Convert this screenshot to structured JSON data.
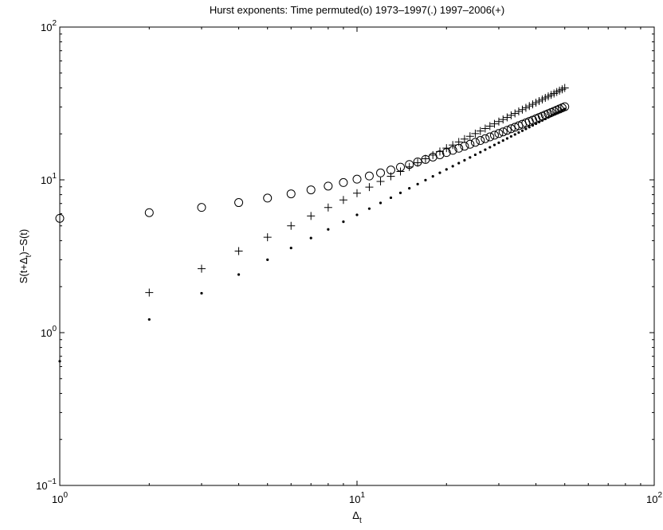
{
  "chart_data": {
    "type": "scatter",
    "title": "Hurst exponents:  Time permuted(o)  1973–1997(.)  1997–2006(+)",
    "xlabel": "Δt",
    "ylabel": "S(t+Δt)−S(t)",
    "xscale": "log",
    "yscale": "log",
    "xlim": [
      1,
      100
    ],
    "ylim": [
      0.1,
      100
    ],
    "xticks": [
      {
        "value": 1,
        "base": "10",
        "exp": "0"
      },
      {
        "value": 10,
        "base": "10",
        "exp": "1"
      },
      {
        "value": 100,
        "base": "10",
        "exp": "2"
      }
    ],
    "yticks": [
      {
        "value": 0.1,
        "base": "10",
        "exp": "−1"
      },
      {
        "value": 1,
        "base": "10",
        "exp": "0"
      },
      {
        "value": 10,
        "base": "10",
        "exp": "1"
      },
      {
        "value": 100,
        "base": "10",
        "exp": "2"
      }
    ],
    "grid": false,
    "series": [
      {
        "label": "Time permuted",
        "marker": "o",
        "x": [
          1,
          2,
          3,
          4,
          5,
          6,
          7,
          8,
          9,
          10,
          11,
          12,
          13,
          14,
          15,
          16,
          17,
          18,
          19,
          20,
          21,
          22,
          23,
          24,
          25,
          26,
          27,
          28,
          29,
          30,
          31,
          32,
          33,
          34,
          35,
          36,
          37,
          38,
          39,
          40,
          41,
          42,
          43,
          44,
          45,
          46,
          47,
          48,
          49,
          50
        ],
        "y": [
          5.6,
          6.1,
          6.6,
          7.1,
          7.6,
          8.1,
          8.6,
          9.1,
          9.6,
          10.1,
          10.6,
          11.1,
          11.6,
          12.1,
          12.6,
          13.1,
          13.6,
          14.1,
          14.6,
          15.1,
          15.6,
          16.1,
          16.6,
          17.1,
          17.6,
          18.1,
          18.6,
          19.1,
          19.6,
          20.1,
          20.6,
          21.1,
          21.6,
          22.1,
          22.6,
          23.1,
          23.6,
          24.1,
          24.6,
          25.1,
          25.6,
          26.1,
          26.6,
          27.1,
          27.6,
          28.1,
          28.6,
          29.1,
          29.6,
          30.1
        ]
      },
      {
        "label": "1973–1997",
        "marker": ".",
        "x": [
          1,
          2,
          3,
          4,
          5,
          6,
          7,
          8,
          9,
          10,
          11,
          12,
          13,
          14,
          15,
          16,
          17,
          18,
          19,
          20,
          21,
          22,
          23,
          24,
          25,
          26,
          27,
          28,
          29,
          30,
          31,
          32,
          33,
          34,
          35,
          36,
          37,
          38,
          39,
          40,
          41,
          42,
          43,
          44,
          45,
          46,
          47,
          48,
          49,
          50
        ],
        "y": [
          0.65,
          1.22,
          1.81,
          2.4,
          3.0,
          3.58,
          4.16,
          4.74,
          5.32,
          5.9,
          6.48,
          7.06,
          7.64,
          8.22,
          8.8,
          9.38,
          9.96,
          10.54,
          11.12,
          11.7,
          12.28,
          12.86,
          13.44,
          14.02,
          14.6,
          15.18,
          15.76,
          16.34,
          16.92,
          17.5,
          18.08,
          18.66,
          19.24,
          19.82,
          20.4,
          20.98,
          21.56,
          22.14,
          22.72,
          23.3,
          23.88,
          24.46,
          25.04,
          25.62,
          26.2,
          26.78,
          27.36,
          27.94,
          28.52,
          29.1
        ]
      },
      {
        "label": "1997–2006",
        "marker": "+",
        "x": [
          2,
          3,
          4,
          5,
          6,
          7,
          8,
          9,
          10,
          11,
          12,
          13,
          14,
          15,
          16,
          17,
          18,
          19,
          20,
          21,
          22,
          23,
          24,
          25,
          26,
          27,
          28,
          29,
          30,
          31,
          32,
          33,
          34,
          35,
          36,
          37,
          38,
          39,
          40,
          41,
          42,
          43,
          44,
          45,
          46,
          47,
          48,
          49,
          50
        ],
        "y": [
          1.83,
          2.62,
          3.42,
          4.21,
          5.0,
          5.8,
          6.59,
          7.39,
          8.18,
          8.97,
          9.77,
          10.56,
          11.35,
          12.15,
          12.94,
          13.74,
          14.53,
          15.32,
          16.12,
          16.91,
          17.71,
          18.5,
          19.29,
          20.09,
          20.88,
          21.68,
          22.47,
          23.26,
          24.06,
          24.85,
          25.65,
          26.44,
          27.23,
          28.03,
          28.82,
          29.61,
          30.41,
          31.2,
          32.0,
          32.79,
          33.58,
          34.38,
          35.17,
          35.97,
          36.76,
          37.55,
          38.35,
          39.14,
          39.94
        ]
      }
    ]
  }
}
